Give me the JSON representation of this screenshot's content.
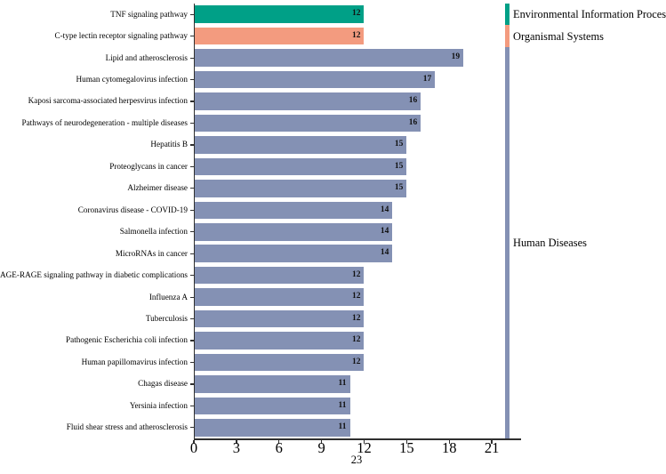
{
  "chart_data": {
    "type": "bar",
    "orientation": "horizontal",
    "title": "",
    "xlabel": "23",
    "ylabel": "",
    "xlim": [
      0,
      23
    ],
    "xticks": [
      0,
      3,
      6,
      9,
      12,
      15,
      18,
      21
    ],
    "grid": false,
    "legend_position": "right-strip",
    "legend": [
      {
        "label": "Environmental Information Processing",
        "color": "#00A087"
      },
      {
        "label": "Organismal Systems",
        "color": "#F39B7F"
      },
      {
        "label": "Human Diseases",
        "color": "#8491B4"
      }
    ],
    "items": [
      {
        "label": "TNF signaling pathway",
        "value": 12,
        "group": "Environmental Information Processing"
      },
      {
        "label": "C-type lectin receptor signaling pathway",
        "value": 12,
        "group": "Organismal Systems"
      },
      {
        "label": "Lipid and atherosclerosis",
        "value": 19,
        "group": "Human Diseases"
      },
      {
        "label": "Human cytomegalovirus infection",
        "value": 17,
        "group": "Human Diseases"
      },
      {
        "label": "Kaposi sarcoma-associated herpesvirus infection",
        "value": 16,
        "group": "Human Diseases"
      },
      {
        "label": "Pathways of neurodegeneration - multiple diseases",
        "value": 16,
        "group": "Human Diseases"
      },
      {
        "label": "Hepatitis B",
        "value": 15,
        "group": "Human Diseases"
      },
      {
        "label": "Proteoglycans in cancer",
        "value": 15,
        "group": "Human Diseases"
      },
      {
        "label": "Alzheimer disease",
        "value": 15,
        "group": "Human Diseases"
      },
      {
        "label": "Coronavirus disease - COVID-19",
        "value": 14,
        "group": "Human Diseases"
      },
      {
        "label": "Salmonella infection",
        "value": 14,
        "group": "Human Diseases"
      },
      {
        "label": "MicroRNAs in cancer",
        "value": 14,
        "group": "Human Diseases"
      },
      {
        "label": "AGE-RAGE signaling pathway in diabetic complications",
        "value": 12,
        "group": "Human Diseases"
      },
      {
        "label": "Influenza A",
        "value": 12,
        "group": "Human Diseases"
      },
      {
        "label": "Tuberculosis",
        "value": 12,
        "group": "Human Diseases"
      },
      {
        "label": "Pathogenic Escherichia coli infection",
        "value": 12,
        "group": "Human Diseases"
      },
      {
        "label": "Human papillomavirus infection",
        "value": 12,
        "group": "Human Diseases"
      },
      {
        "label": "Chagas disease",
        "value": 11,
        "group": "Human Diseases"
      },
      {
        "label": "Yersinia infection",
        "value": 11,
        "group": "Human Diseases"
      },
      {
        "label": "Fluid shear stress and atherosclerosis",
        "value": 11,
        "group": "Human Diseases"
      }
    ]
  }
}
